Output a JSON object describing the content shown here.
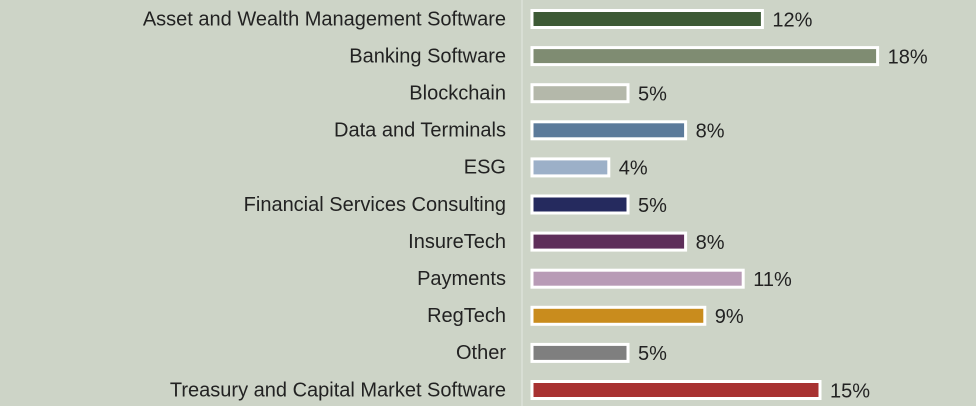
{
  "chart_data": {
    "type": "barh",
    "categories": [
      "Asset and Wealth Management Software",
      "Banking Software",
      "Blockchain",
      "Data and Terminals",
      "ESG",
      "Financial Services Consulting",
      "InsureTech",
      "Payments",
      "RegTech",
      "Other",
      "Treasury and Capital Market Software"
    ],
    "values": [
      12,
      18,
      5,
      8,
      4,
      5,
      8,
      11,
      9,
      5,
      15
    ],
    "value_labels": [
      "12%",
      "18%",
      "5%",
      "8%",
      "4%",
      "5%",
      "8%",
      "11%",
      "9%",
      "5%",
      "15%"
    ],
    "colors": [
      "#3d5a35",
      "#7f8c72",
      "#b4b8aa",
      "#5b7a9a",
      "#9cb0c8",
      "#252a5e",
      "#5e2f5a",
      "#b89bb6",
      "#c98c1d",
      "#7f7f7f",
      "#a83232"
    ],
    "xlim": [
      0,
      20
    ]
  }
}
